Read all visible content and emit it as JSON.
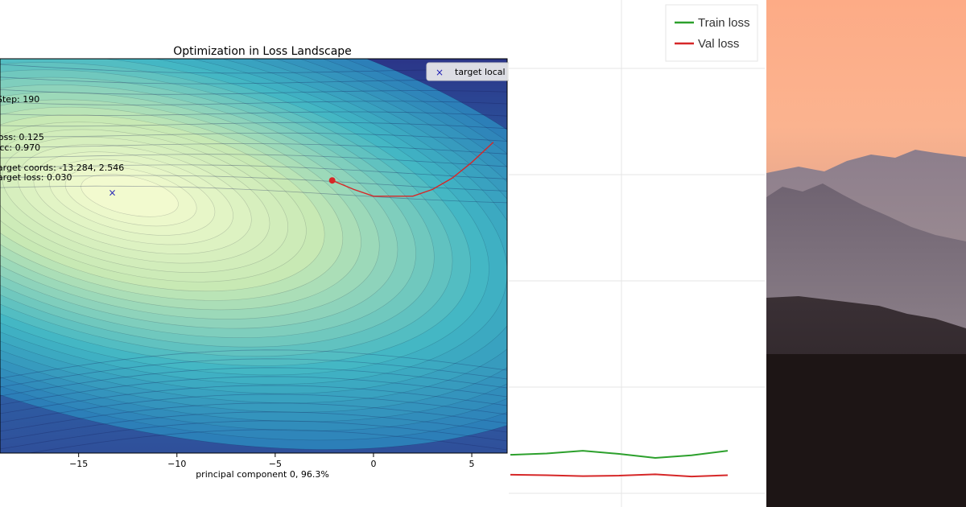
{
  "chart_data": [
    {
      "type": "contour",
      "title": "Optimization in Loss Landscape",
      "xlabel": "principal component 0, 96.3%",
      "xlim": [
        -19,
        6.8
      ],
      "ylim": [
        -9,
        8.5
      ],
      "x_ticks": [
        -15,
        -10,
        -5,
        0,
        5
      ],
      "x_tick_labels": [
        "−15",
        "−10",
        "−5",
        "0",
        "5"
      ],
      "legend": {
        "label": "target local",
        "marker": "×",
        "position": "top-right"
      },
      "stats": [
        {
          "label": "Step:",
          "value": "190"
        },
        {
          "label": "Loss:",
          "value": "0.125"
        },
        {
          "label": "Acc:",
          "value": "0.970"
        },
        {
          "label": "Target coords:",
          "value": "-13.284,  2.546"
        },
        {
          "label": "Target loss:",
          "value": "0.030"
        }
      ],
      "target": {
        "x": -13.284,
        "y": 2.546
      },
      "trajectory": {
        "color": "#d62728",
        "x": [
          6.1,
          5.0,
          4.0,
          3.0,
          2.0,
          1.0,
          0.0,
          -1.0,
          -2.1
        ],
        "y": [
          4.8,
          3.9,
          3.2,
          2.7,
          2.4,
          2.4,
          2.4,
          2.7,
          3.1
        ]
      },
      "current_point": {
        "x": -2.1,
        "y": 3.1
      },
      "colors": {
        "low": "#f7fcd2",
        "mid": "#41b6c4",
        "high": "#253494"
      }
    },
    {
      "type": "line",
      "series": [
        {
          "name": "Train loss",
          "color": "#2ca02c",
          "values": [
            0.085,
            0.088,
            0.094,
            0.087,
            0.078,
            0.084,
            0.094
          ]
        },
        {
          "name": "Val loss",
          "color": "#d62728",
          "values": [
            0.04,
            0.039,
            0.037,
            0.038,
            0.041,
            0.036,
            0.039
          ]
        }
      ],
      "x": [
        0,
        1,
        2,
        3,
        4,
        5,
        6
      ],
      "ylim": [
        0,
        1.2
      ],
      "grid": true,
      "legend_position": "top-right"
    }
  ],
  "background_photo": {
    "subject": "mountain sunset",
    "colors": [
      "#f7b08e",
      "#7d6d79",
      "#1d1515"
    ]
  }
}
